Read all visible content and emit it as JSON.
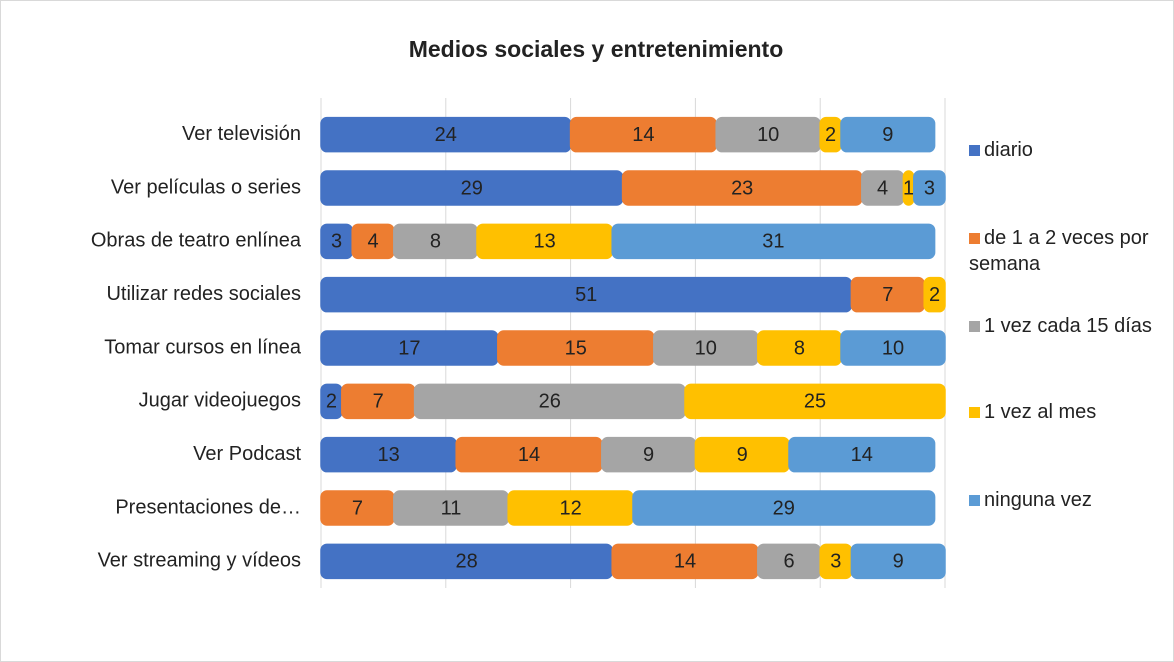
{
  "chart_data": {
    "type": "stacked-bar-horizontal",
    "title": "Medios sociales y entretenimiento",
    "categories": [
      "Ver televisión",
      "Ver películas o series",
      "Obras de teatro enlínea",
      "Utilizar redes sociales",
      "Tomar cursos en línea",
      "Jugar videojuegos",
      "Ver Podcast",
      "Presentaciones de…",
      "Ver streaming y vídeos"
    ],
    "series": [
      {
        "name": "diario",
        "color": "#4472c4",
        "values": [
          24,
          29,
          3,
          51,
          17,
          2,
          13,
          null,
          28
        ]
      },
      {
        "name": "de 1 a 2 veces por semana",
        "color": "#ed7d31",
        "values": [
          14,
          23,
          4,
          7,
          15,
          7,
          14,
          7,
          14
        ]
      },
      {
        "name": "1 vez cada 15 días",
        "color": "#a5a5a5",
        "values": [
          10,
          4,
          8,
          null,
          10,
          26,
          9,
          11,
          6
        ]
      },
      {
        "name": "1 vez al mes",
        "color": "#ffc000",
        "values": [
          2,
          1,
          13,
          2,
          8,
          25,
          9,
          12,
          3
        ]
      },
      {
        "name": "ninguna vez",
        "color": "#5b9bd5",
        "values": [
          9,
          3,
          31,
          null,
          10,
          null,
          14,
          29,
          9
        ]
      }
    ],
    "xlim": [
      0,
      60
    ],
    "xticks": [
      0,
      12,
      24,
      36,
      48,
      60
    ],
    "grid": true,
    "legend": "right"
  }
}
